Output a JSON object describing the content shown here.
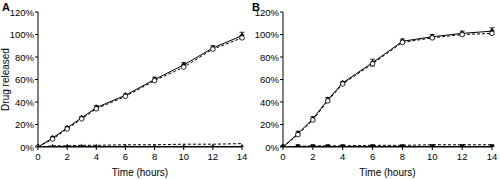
{
  "chart_data": [
    {
      "type": "line",
      "title": "A",
      "x_label": "Time (hours)",
      "y_label": "Drug released",
      "x": [
        0,
        1,
        2,
        3,
        4,
        6,
        8,
        10,
        12,
        14
      ],
      "xlim": [
        0,
        14
      ],
      "xticks": [
        0,
        2,
        4,
        6,
        8,
        10,
        12,
        14
      ],
      "ylim": [
        0,
        120
      ],
      "yticks": [
        {
          "value": 0,
          "label": "0%"
        },
        {
          "value": 20,
          "label": "20%"
        },
        {
          "value": 40,
          "label": "40%"
        },
        {
          "value": 60,
          "label": "60%"
        },
        {
          "value": 80,
          "label": "80%"
        },
        {
          "value": 100,
          "label": "100%"
        },
        {
          "value": 120,
          "label": "120%"
        }
      ],
      "series": [
        {
          "color": "#000000",
          "line_style": "solid",
          "marker": "diamond",
          "values": [
            0,
            8,
            17,
            26,
            35,
            46,
            60,
            73,
            88,
            99
          ],
          "errors": [
            0,
            1,
            1,
            1,
            2,
            1,
            2,
            2,
            2,
            3
          ]
        },
        {
          "color": "#000000",
          "line_style": "dashed",
          "marker": "open-circle",
          "values": [
            0,
            7,
            16,
            25,
            34,
            45,
            59,
            71,
            87,
            97
          ]
        },
        {
          "color": "#000000",
          "line_style": "solid",
          "marker": "triangle",
          "values": [
            0,
            0.5,
            0.5,
            0.5,
            0.5,
            0.5,
            0.5,
            0.5,
            0.5,
            0.5
          ]
        },
        {
          "color": "#000000",
          "line_style": "dashed",
          "marker": "none",
          "values": [
            0,
            1,
            1,
            1.5,
            1.5,
            2,
            2,
            2.5,
            2.5,
            3
          ]
        }
      ]
    },
    {
      "type": "line",
      "title": "B",
      "x_label": "Time (hours)",
      "x": [
        0,
        1,
        2,
        3,
        4,
        6,
        8,
        10,
        12,
        14
      ],
      "xlim": [
        0,
        14
      ],
      "xticks": [
        0,
        2,
        4,
        6,
        8,
        10,
        12,
        14
      ],
      "ylim": [
        0,
        120
      ],
      "yticks": [
        {
          "value": 0,
          "label": "0%"
        },
        {
          "value": 20,
          "label": "20%"
        },
        {
          "value": 40,
          "label": "40%"
        },
        {
          "value": 60,
          "label": "60%"
        },
        {
          "value": 80,
          "label": "80%"
        },
        {
          "value": 100,
          "label": "100%"
        },
        {
          "value": 120,
          "label": "120%"
        }
      ],
      "series": [
        {
          "color": "#000000",
          "line_style": "solid",
          "marker": "diamond",
          "values": [
            0,
            12,
            25,
            42,
            57,
            75,
            94,
            98,
            101,
            103
          ],
          "errors": [
            0,
            2,
            2,
            2,
            1,
            3,
            2,
            2,
            2,
            3
          ]
        },
        {
          "color": "#000000",
          "line_style": "dashed",
          "marker": "open-circle",
          "values": [
            0,
            11,
            24,
            41,
            56,
            74,
            93,
            97,
            100,
            101
          ]
        },
        {
          "color": "#000000",
          "line_style": "solid",
          "marker": "square",
          "values": [
            0,
            0.5,
            0.5,
            0.5,
            0.5,
            0.5,
            0.5,
            0.5,
            0.5,
            0.5
          ]
        },
        {
          "color": "#000000",
          "line_style": "dashed",
          "marker": "none",
          "values": [
            0,
            0.5,
            1,
            1,
            1,
            1.5,
            1.5,
            2,
            2,
            2
          ]
        }
      ]
    }
  ]
}
